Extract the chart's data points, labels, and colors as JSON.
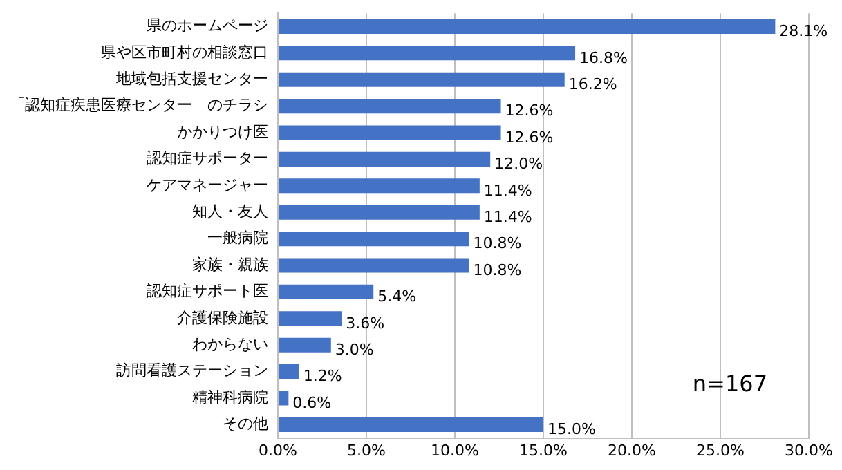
{
  "chart_data": {
    "type": "bar",
    "orientation": "horizontal",
    "categories": [
      "県のホームページ",
      "県や区市町村の相談窓口",
      "地域包括支援センター",
      "「認知症疾患医療センター」のチラシ",
      "かかりつけ医",
      "認知症サポーター",
      "ケアマネージャー",
      "知人・友人",
      "一般病院",
      "家族・親族",
      "認知症サポート医",
      "介護保険施設",
      "わからない",
      "訪問看護ステーション",
      "精神科病院",
      "その他"
    ],
    "values": [
      28.1,
      16.8,
      16.2,
      12.6,
      12.6,
      12.0,
      11.4,
      11.4,
      10.8,
      10.8,
      5.4,
      3.6,
      3.0,
      1.2,
      0.6,
      15.0
    ],
    "value_labels": [
      "28.1%",
      "16.8%",
      "16.2%",
      "12.6%",
      "12.6%",
      "12.0%",
      "11.4%",
      "11.4%",
      "10.8%",
      "10.8%",
      "5.4%",
      "3.6%",
      "3.0%",
      "1.2%",
      "0.6%",
      "15.0%"
    ],
    "color": "#4472c4",
    "xlim": [
      0,
      30
    ],
    "xticks": [
      {
        "value": 0,
        "label": "0.0%"
      },
      {
        "value": 5,
        "label": "5.0%"
      },
      {
        "value": 10,
        "label": "10.0%"
      },
      {
        "value": 15,
        "label": "15.0%"
      },
      {
        "value": 20,
        "label": "20.0%"
      },
      {
        "value": 25,
        "label": "25.0%"
      },
      {
        "value": 30,
        "label": "30.0%"
      }
    ],
    "grid": "x",
    "annotations": [
      "n=167"
    ]
  }
}
